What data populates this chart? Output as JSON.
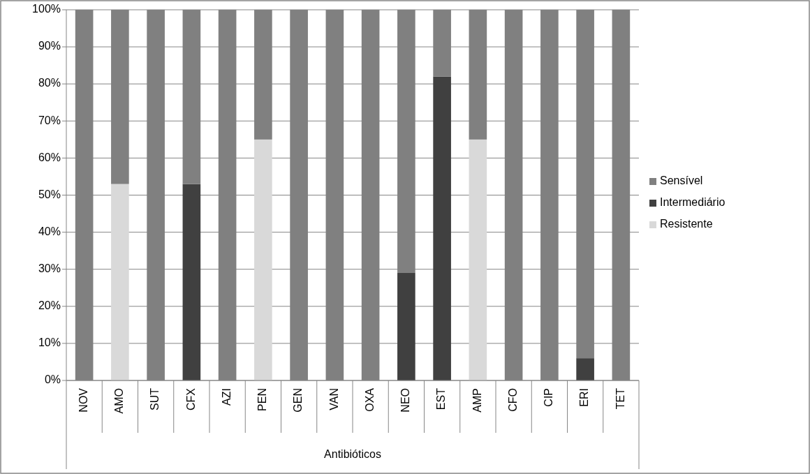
{
  "chart_data": {
    "type": "bar",
    "stacked": true,
    "xlabel": "Antibióticos",
    "categories": [
      "NOV",
      "AMO",
      "SUT",
      "CFX",
      "AZI",
      "PEN",
      "GEN",
      "VAN",
      "OXA",
      "NEO",
      "EST",
      "AMP",
      "CFO",
      "CIP",
      "ERI",
      "TET"
    ],
    "series": [
      {
        "name": "Resistente",
        "color": "#d9d9d9",
        "values": [
          0,
          53,
          0,
          0,
          0,
          65,
          0,
          0,
          0,
          0,
          0,
          65,
          0,
          0,
          0,
          0
        ]
      },
      {
        "name": "Intermediário",
        "color": "#404040",
        "values": [
          0,
          0,
          0,
          53,
          0,
          0,
          0,
          0,
          0,
          29,
          82,
          0,
          0,
          0,
          6,
          0
        ]
      },
      {
        "name": "Sensível",
        "color": "#808080",
        "values": [
          100,
          47,
          100,
          47,
          100,
          35,
          100,
          100,
          100,
          71,
          18,
          35,
          100,
          100,
          94,
          100
        ]
      }
    ],
    "ylim": [
      0,
      100
    ],
    "yticks": [
      {
        "value": 0,
        "label": "0%"
      },
      {
        "value": 10,
        "label": "10%"
      },
      {
        "value": 20,
        "label": "20%"
      },
      {
        "value": 30,
        "label": "30%"
      },
      {
        "value": 40,
        "label": "40%"
      },
      {
        "value": 50,
        "label": "50%"
      },
      {
        "value": 60,
        "label": "60%"
      },
      {
        "value": 70,
        "label": "70%"
      },
      {
        "value": 80,
        "label": "80%"
      },
      {
        "value": 90,
        "label": "90%"
      },
      {
        "value": 100,
        "label": "100%"
      }
    ],
    "grid": "y",
    "legend": "right"
  }
}
